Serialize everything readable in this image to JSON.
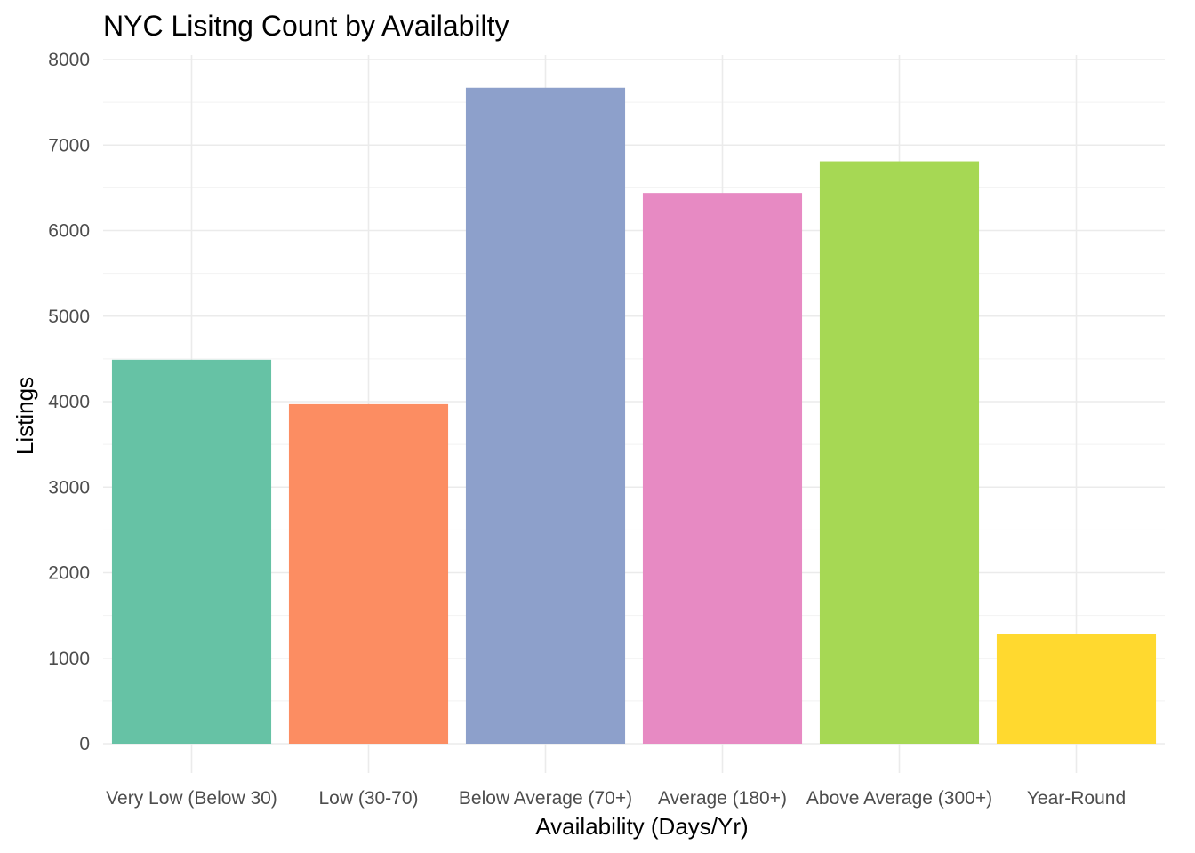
{
  "chart_data": {
    "type": "bar",
    "title": "NYC Lisitng Count by Availabilty",
    "xlabel": "Availability (Days/Yr)",
    "ylabel": "Listings",
    "categories": [
      "Very Low (Below 30)",
      "Low (30-70)",
      "Below Average (70+)",
      "Average (180+)",
      "Above Average (300+)",
      "Year-Round"
    ],
    "values": [
      4490,
      3970,
      7670,
      6440,
      6810,
      1280
    ],
    "colors": [
      "#66c2a5",
      "#fc8d62",
      "#8da0cb",
      "#e78ac3",
      "#a6d854",
      "#ffd92f"
    ],
    "ylim": [
      0,
      8000
    ],
    "yticks": [
      0,
      1000,
      2000,
      3000,
      4000,
      5000,
      6000,
      7000,
      8000
    ],
    "ytick_labels": [
      "0",
      "1000",
      "2000",
      "3000",
      "4000",
      "5000",
      "6000",
      "7000",
      "8000"
    ],
    "grid": true,
    "legend": "none"
  }
}
